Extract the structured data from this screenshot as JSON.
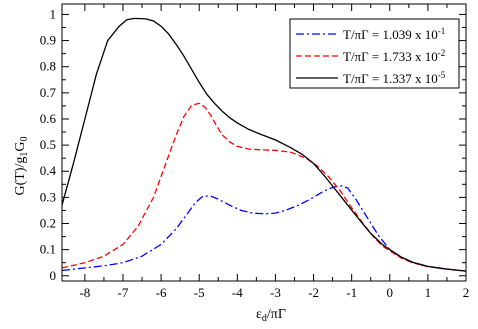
{
  "chart_data": {
    "type": "line",
    "xlabel_main": "ε",
    "xlabel_sub": "d",
    "xlabel_tail": "/πΓ",
    "ylabel_main": "G(T)/g",
    "ylabel_sub1": "1",
    "ylabel_mid": "G",
    "ylabel_sub2": "0",
    "xlim": [
      -8.6,
      2.0
    ],
    "ylim": [
      -0.02,
      1.04
    ],
    "x_ticks": [
      -8,
      -7,
      -6,
      -5,
      -4,
      -3,
      -2,
      -1,
      0,
      1,
      2
    ],
    "x_tick_labels": [
      "-8",
      "-7",
      "-6",
      "-5",
      "-4",
      "-3",
      "-2",
      "-1",
      "0",
      "1",
      "2"
    ],
    "y_ticks": [
      0,
      0.1,
      0.2,
      0.3,
      0.4,
      0.5,
      0.6,
      0.7,
      0.8,
      0.9,
      1.0
    ],
    "y_tick_labels": [
      "0",
      "0.1",
      "0.2",
      "0.3",
      "0.4",
      "0.5",
      "0.6",
      "0.7",
      "0.8",
      "0.9",
      "1"
    ],
    "grid": false,
    "legend_placement": "top-right",
    "series": [
      {
        "name_prefix": "T/πΓ = 1.039 x 10",
        "name_exp": "-1",
        "color": "#0000ff",
        "dash": "dashdot",
        "x": [
          -8.6,
          -8.0,
          -7.5,
          -7.0,
          -6.5,
          -6.0,
          -5.6,
          -5.3,
          -5.1,
          -4.9,
          -4.7,
          -4.5,
          -4.2,
          -3.9,
          -3.6,
          -3.3,
          -3.0,
          -2.7,
          -2.4,
          -2.1,
          -1.8,
          -1.6,
          -1.4,
          -1.25,
          -1.1,
          -0.9,
          -0.6,
          -0.3,
          0.0,
          0.3,
          0.6,
          1.0,
          1.5,
          2.0
        ],
        "y": [
          0.02,
          0.03,
          0.038,
          0.05,
          0.075,
          0.12,
          0.18,
          0.24,
          0.28,
          0.305,
          0.305,
          0.293,
          0.27,
          0.25,
          0.24,
          0.237,
          0.24,
          0.252,
          0.27,
          0.292,
          0.318,
          0.333,
          0.342,
          0.344,
          0.335,
          0.295,
          0.225,
          0.155,
          0.1,
          0.07,
          0.05,
          0.035,
          0.025,
          0.018
        ]
      },
      {
        "name_prefix": "T/πΓ = 1.733 x 10",
        "name_exp": "-2",
        "color": "#ff0000",
        "dash": "dashed",
        "x": [
          -8.6,
          -8.0,
          -7.5,
          -7.0,
          -6.6,
          -6.2,
          -5.9,
          -5.6,
          -5.4,
          -5.2,
          -5.0,
          -4.85,
          -4.7,
          -4.55,
          -4.4,
          -4.2,
          -4.0,
          -3.7,
          -3.4,
          -3.0,
          -2.6,
          -2.2,
          -1.9,
          -1.6,
          -1.3,
          -1.0,
          -0.7,
          -0.4,
          -0.2,
          0.0,
          0.3,
          0.6,
          1.0,
          1.5,
          2.0
        ],
        "y": [
          0.03,
          0.05,
          0.075,
          0.12,
          0.19,
          0.3,
          0.42,
          0.54,
          0.61,
          0.652,
          0.66,
          0.645,
          0.615,
          0.575,
          0.54,
          0.512,
          0.495,
          0.485,
          0.482,
          0.48,
          0.473,
          0.45,
          0.42,
          0.378,
          0.325,
          0.26,
          0.2,
          0.145,
          0.115,
          0.095,
          0.068,
          0.05,
          0.035,
          0.025,
          0.018
        ]
      },
      {
        "name_prefix": "T/πΓ = 1.337 x 10",
        "name_exp": "-5",
        "color": "#000000",
        "dash": "solid",
        "x": [
          -8.6,
          -8.3,
          -8.0,
          -7.7,
          -7.4,
          -7.1,
          -6.9,
          -6.7,
          -6.4,
          -6.2,
          -6.0,
          -5.8,
          -5.6,
          -5.4,
          -5.2,
          -5.0,
          -4.8,
          -4.6,
          -4.4,
          -4.2,
          -4.0,
          -3.7,
          -3.4,
          -3.0,
          -2.6,
          -2.3,
          -2.0,
          -1.7,
          -1.4,
          -1.1,
          -0.8,
          -0.5,
          -0.2,
          0.0,
          0.3,
          0.6,
          1.0,
          1.5,
          2.0
        ],
        "y": [
          0.27,
          0.43,
          0.6,
          0.77,
          0.9,
          0.955,
          0.98,
          0.985,
          0.983,
          0.975,
          0.955,
          0.925,
          0.885,
          0.84,
          0.79,
          0.74,
          0.695,
          0.66,
          0.63,
          0.605,
          0.585,
          0.56,
          0.542,
          0.52,
          0.49,
          0.465,
          0.43,
          0.38,
          0.325,
          0.27,
          0.215,
          0.162,
          0.12,
          0.1,
          0.072,
          0.052,
          0.036,
          0.026,
          0.018
        ]
      }
    ]
  }
}
